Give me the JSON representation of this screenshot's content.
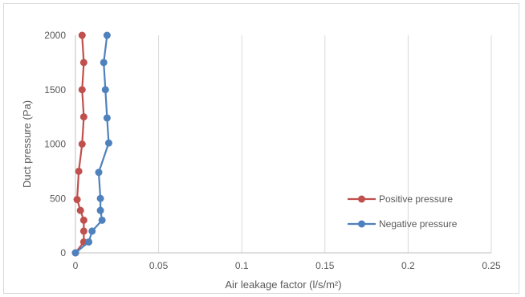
{
  "chart_data": {
    "type": "scatter",
    "xlabel": "Air leakage factor (l/s/m²)",
    "ylabel": "Duct pressure (Pa)",
    "xlim": [
      0,
      0.25
    ],
    "ylim": [
      0,
      2000
    ],
    "xticks": [
      "0",
      "0.05",
      "0.1",
      "0.15",
      "0.2",
      "0.25"
    ],
    "yticks": [
      "0",
      "500",
      "1000",
      "1500",
      "2000"
    ],
    "grid": "vertical",
    "legend_position": "right",
    "series": [
      {
        "name": "Positive pressure",
        "color": "#c0504d",
        "points": [
          [
            0,
            0
          ],
          [
            0.005,
            100
          ],
          [
            0.005,
            200
          ],
          [
            0.005,
            300
          ],
          [
            0.003,
            390
          ],
          [
            0.001,
            490
          ],
          [
            0.002,
            750
          ],
          [
            0.004,
            1000
          ],
          [
            0.005,
            1250
          ],
          [
            0.004,
            1500
          ],
          [
            0.005,
            1750
          ],
          [
            0.004,
            2000
          ]
        ]
      },
      {
        "name": "Negative pressure",
        "color": "#4f81bd",
        "points": [
          [
            0,
            0
          ],
          [
            0.008,
            100
          ],
          [
            0.01,
            200
          ],
          [
            0.016,
            300
          ],
          [
            0.015,
            390
          ],
          [
            0.015,
            500
          ],
          [
            0.014,
            740
          ],
          [
            0.02,
            1010
          ],
          [
            0.019,
            1240
          ],
          [
            0.018,
            1500
          ],
          [
            0.017,
            1750
          ],
          [
            0.019,
            2000
          ]
        ]
      }
    ]
  }
}
